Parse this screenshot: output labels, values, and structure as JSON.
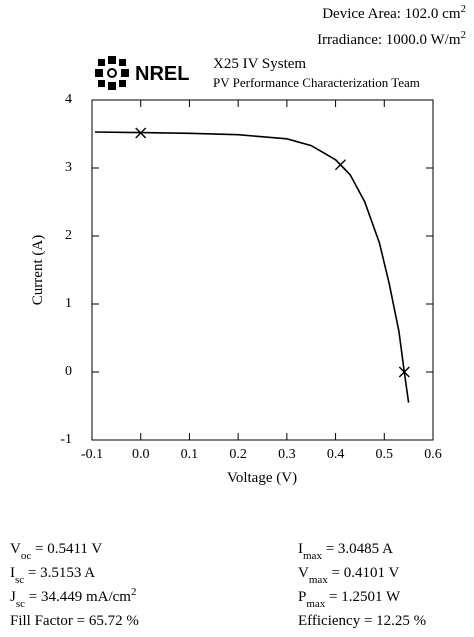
{
  "header": {
    "device_area": [
      {
        "t": "Device Area: 102.0 cm"
      },
      {
        "sup": "2"
      }
    ],
    "irradiance": [
      {
        "t": "Irradiance: 1000.0 W/m"
      },
      {
        "sup": "2"
      }
    ],
    "logo": "NREL",
    "system": "X25 IV System",
    "team": "PV Performance Characterization Team"
  },
  "chart_data": {
    "type": "line",
    "xlabel": "Voltage (V)",
    "ylabel": "Current (A)",
    "xlim": [
      -0.1,
      0.6
    ],
    "ylim": [
      -1,
      4
    ],
    "xticks": [
      -0.1,
      {
        "value": 0,
        "label": "0.0"
      },
      0.1,
      0.2,
      0.3,
      0.4,
      0.5,
      0.6
    ],
    "yticks": [
      -1,
      0,
      1,
      2,
      3,
      4
    ],
    "series": [
      {
        "color": "#000000",
        "x": [
          -0.094,
          0,
          0.1,
          0.2,
          0.3,
          0.35,
          0.4,
          0.43,
          0.46,
          0.49,
          0.51,
          0.53,
          0.541,
          0.55
        ],
        "values": [
          3.53,
          3.52,
          3.51,
          3.49,
          3.43,
          3.33,
          3.12,
          2.9,
          2.5,
          1.9,
          1.3,
          0.6,
          0,
          -0.45
        ]
      }
    ],
    "markers": {
      "color": "#000000",
      "x": [
        0,
        0.4101,
        0.5411
      ],
      "values": [
        3.5153,
        3.0485,
        0
      ]
    }
  },
  "footer": {
    "left": [
      [
        {
          "t": "V"
        },
        {
          "sub": "oc"
        },
        {
          "t": " = 0.5411 V"
        }
      ],
      [
        {
          "t": "I"
        },
        {
          "sub": "sc"
        },
        {
          "t": " = 3.5153 A"
        }
      ],
      [
        {
          "t": "J"
        },
        {
          "sub": "sc"
        },
        {
          "t": " = 34.449 mA/cm"
        },
        {
          "sup": "2"
        }
      ],
      [
        {
          "t": "Fill Factor = 65.72 %"
        }
      ]
    ],
    "right": [
      [
        {
          "t": "I"
        },
        {
          "sub": "max"
        },
        {
          "t": " = 3.0485 A"
        }
      ],
      [
        {
          "t": "V"
        },
        {
          "sub": "max"
        },
        {
          "t": " = 0.4101 V"
        }
      ],
      [
        {
          "t": "P"
        },
        {
          "sub": "max"
        },
        {
          "t": " = 1.2501 W"
        }
      ],
      [
        {
          "t": "Efficiency = 12.25 %"
        }
      ]
    ]
  }
}
